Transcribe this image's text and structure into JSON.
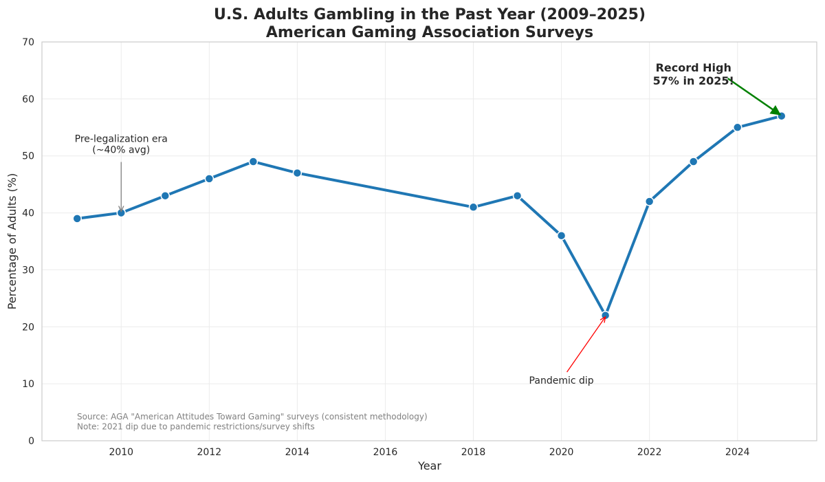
{
  "chart_data": {
    "type": "line",
    "title": "U.S. Adults Gambling in the Past Year (2009–2025)",
    "subtitle": "American Gaming Association Surveys",
    "xlabel": "Year",
    "ylabel": "Percentage of Adults (%)",
    "xlim": [
      2008.2,
      2025.8
    ],
    "ylim": [
      0,
      70
    ],
    "xticks": [
      2010,
      2012,
      2014,
      2016,
      2018,
      2020,
      2022,
      2024
    ],
    "yticks": [
      0,
      10,
      20,
      30,
      40,
      50,
      60,
      70
    ],
    "grid": true,
    "series": [
      {
        "name": "Percentage of Adults",
        "color": "#1f77b4",
        "points": [
          {
            "x": 2009,
            "y": 39
          },
          {
            "x": 2010,
            "y": 40
          },
          {
            "x": 2011,
            "y": 43
          },
          {
            "x": 2012,
            "y": 46
          },
          {
            "x": 2013,
            "y": 49
          },
          {
            "x": 2014,
            "y": 47
          },
          {
            "x": 2018,
            "y": 41
          },
          {
            "x": 2019,
            "y": 43
          },
          {
            "x": 2020,
            "y": 36
          },
          {
            "x": 2021,
            "y": 22
          },
          {
            "x": 2022,
            "y": 42
          },
          {
            "x": 2023,
            "y": 49
          },
          {
            "x": 2024,
            "y": 55
          },
          {
            "x": 2025,
            "y": 57
          }
        ]
      }
    ],
    "annotations": [
      {
        "name": "pre-legalization",
        "lines": [
          "Pre-legalization era",
          "(~40% avg)"
        ],
        "target": {
          "x": 2010,
          "y": 40
        },
        "text_at": {
          "x": 2010,
          "y": 50.5
        },
        "color": "#808080",
        "bold": false
      },
      {
        "name": "pandemic-dip",
        "lines": [
          "Pandemic dip"
        ],
        "target": {
          "x": 2021,
          "y": 22
        },
        "text_at": {
          "x": 2020,
          "y": 10
        },
        "color": "#ff0000",
        "bold": false
      },
      {
        "name": "record-high",
        "lines": [
          "Record High",
          "57% in 2025!"
        ],
        "target": {
          "x": 2025,
          "y": 57
        },
        "text_at": {
          "x": 2023,
          "y": 62.5
        },
        "color": "#008000",
        "bold": true
      }
    ],
    "footnote": [
      "Source: AGA \"American Attitudes Toward Gaming\" surveys (consistent methodology)",
      "Note: 2021 dip due to pandemic restrictions/survey shifts"
    ]
  }
}
